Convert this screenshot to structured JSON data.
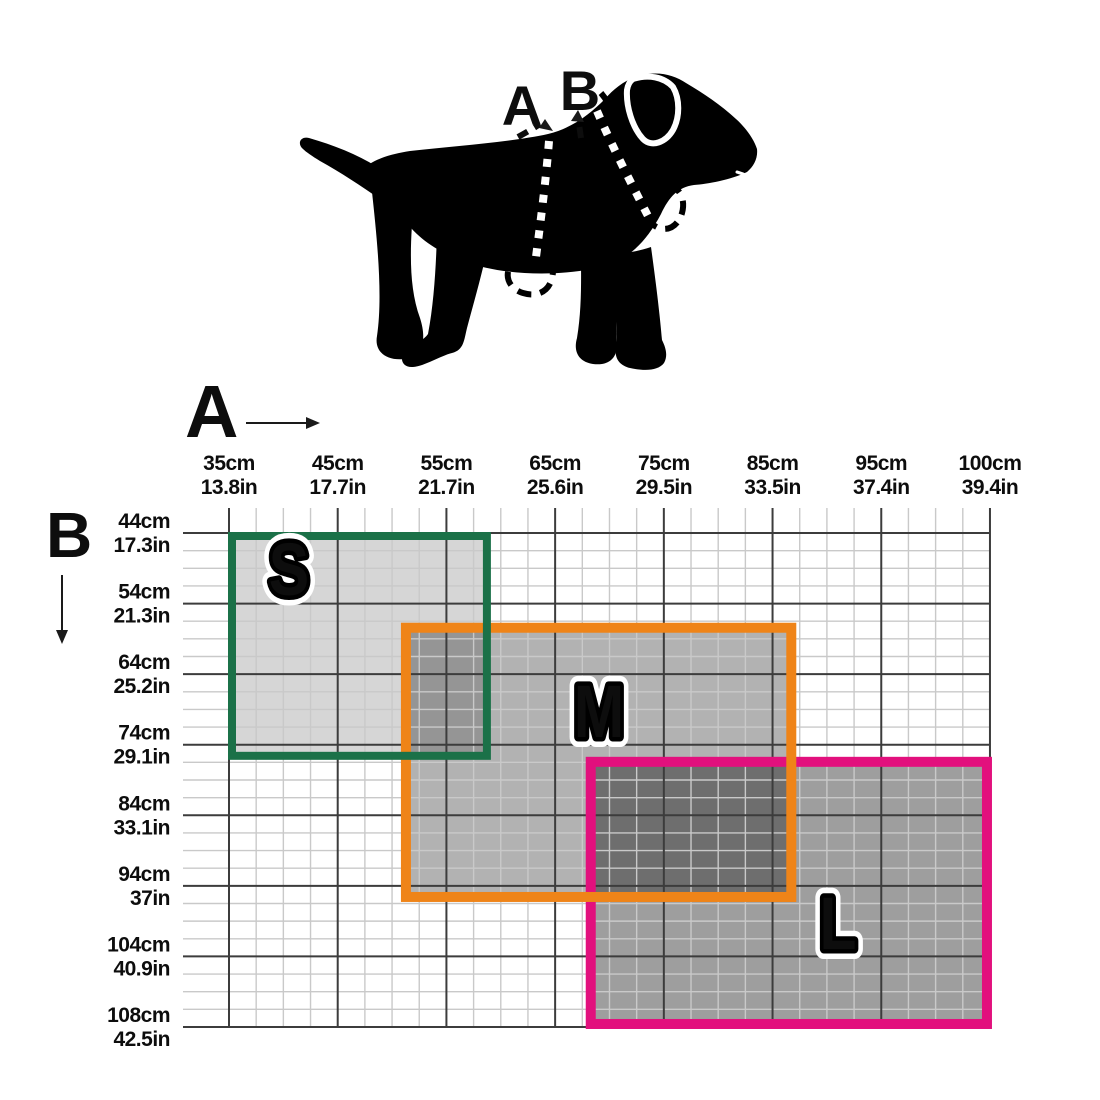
{
  "page_background": "#ffffff",
  "dog_diagram": {
    "description": "black dog silhouette with harness measurement lines",
    "measure_a_label": "A",
    "measure_b_label": "B"
  },
  "chart_data": {
    "type": "range-boxes",
    "title": "",
    "grid": true,
    "x_axis": {
      "name": "A",
      "unit_primary": "cm",
      "unit_secondary": "in",
      "ticks": [
        {
          "cm": 35,
          "cm_label": "35cm",
          "in_label": "13.8in"
        },
        {
          "cm": 45,
          "cm_label": "45cm",
          "in_label": "17.7in"
        },
        {
          "cm": 55,
          "cm_label": "55cm",
          "in_label": "21.7in"
        },
        {
          "cm": 65,
          "cm_label": "65cm",
          "in_label": "25.6in"
        },
        {
          "cm": 75,
          "cm_label": "75cm",
          "in_label": "29.5in"
        },
        {
          "cm": 85,
          "cm_label": "85cm",
          "in_label": "33.5in"
        },
        {
          "cm": 95,
          "cm_label": "95cm",
          "in_label": "37.4in"
        },
        {
          "cm": 100,
          "cm_label": "100cm",
          "in_label": "39.4in"
        }
      ]
    },
    "y_axis": {
      "name": "B",
      "unit_primary": "cm",
      "unit_secondary": "in",
      "ticks": [
        {
          "cm": 44,
          "cm_label": "44cm",
          "in_label": "17.3in"
        },
        {
          "cm": 54,
          "cm_label": "54cm",
          "in_label": "21.3in"
        },
        {
          "cm": 64,
          "cm_label": "64cm",
          "in_label": "25.2in"
        },
        {
          "cm": 74,
          "cm_label": "74cm",
          "in_label": "29.1in"
        },
        {
          "cm": 84,
          "cm_label": "84cm",
          "in_label": "33.1in"
        },
        {
          "cm": 94,
          "cm_label": "94cm",
          "in_label": "37in"
        },
        {
          "cm": 104,
          "cm_label": "104cm",
          "in_label": "40.9in"
        },
        {
          "cm": 108,
          "cm_label": "108cm",
          "in_label": "42.5in"
        }
      ]
    },
    "sizes": [
      {
        "label": "S",
        "border_color": "#1b7148",
        "fill_opacity": 0.16,
        "a_min_cm": 35,
        "a_max_cm": 59,
        "b_min_cm": 44,
        "b_max_cm": 76
      },
      {
        "label": "M",
        "border_color": "#ef8418",
        "fill_opacity": 0.3,
        "a_min_cm": 51,
        "a_max_cm": 87,
        "b_min_cm": 57,
        "b_max_cm": 96
      },
      {
        "label": "L",
        "border_color": "#e2107d",
        "fill_opacity": 0.38,
        "a_min_cm": 68,
        "a_max_cm": 100,
        "b_min_cm": 76,
        "b_max_cm": 108
      }
    ],
    "colors": {
      "grid_major": "#3c3c3c",
      "grid_minor": "#c9c9c9",
      "dog_silhouette": "#000000",
      "text": "#0d0d0d"
    }
  }
}
